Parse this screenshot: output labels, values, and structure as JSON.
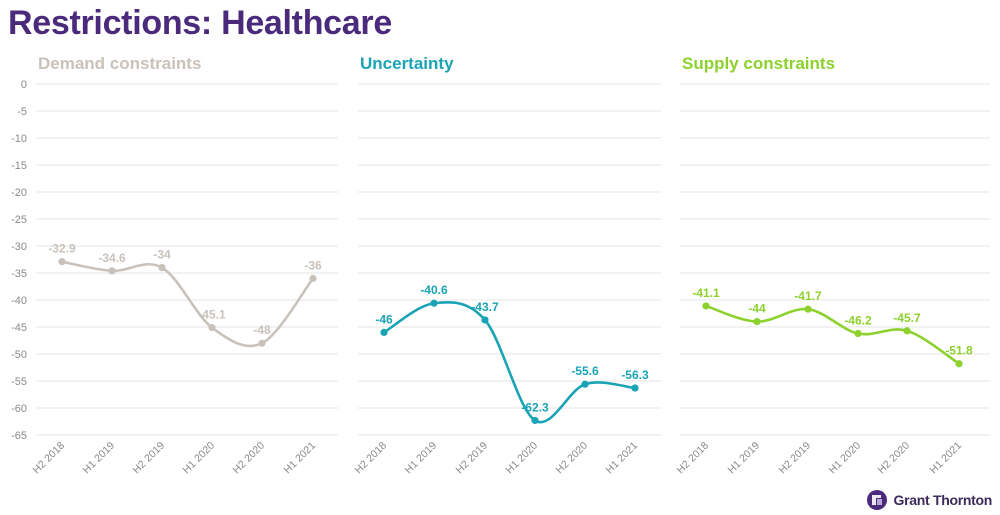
{
  "page": {
    "title": "Restrictions: Healthcare"
  },
  "brand": {
    "name": "Grant Thornton",
    "color": "#4b2a7b"
  },
  "chart_data": [
    {
      "type": "line",
      "title": "Demand constraints",
      "color": "#c9c2ba",
      "categories": [
        "H2 2018",
        "H1 2019",
        "H2 2019",
        "H1 2020",
        "H2 2020",
        "H1 2021"
      ],
      "values": [
        -32.9,
        -34.6,
        -34,
        -45.1,
        -48,
        -36
      ],
      "labels": [
        "-32.9",
        "-34.6",
        "-34",
        "-45.1",
        "-48",
        "-36"
      ],
      "ylim": [
        -65,
        0
      ],
      "yticks": [
        0,
        -5,
        -10,
        -15,
        -20,
        -25,
        -30,
        -35,
        -40,
        -45,
        -50,
        -55,
        -60,
        -65
      ],
      "ytick_labels": [
        "0",
        "-5",
        "-10",
        "-15",
        "-20",
        "-25",
        "-30",
        "-35",
        "-40",
        "-45",
        "-50",
        "-55",
        "-60",
        "-65"
      ],
      "grid": true,
      "smooth": true
    },
    {
      "type": "line",
      "title": "Uncertainty",
      "color": "#1aa3b5",
      "categories": [
        "H2 2018",
        "H1 2019",
        "H2 2019",
        "H1 2020",
        "H2 2020",
        "H1 2021"
      ],
      "values": [
        -46,
        -40.6,
        -43.7,
        -62.3,
        -55.6,
        -56.3
      ],
      "labels": [
        "-46",
        "-40.6",
        "-43.7",
        "-62.3",
        "-55.6",
        "-56.3"
      ],
      "ylim": [
        -65,
        0
      ],
      "grid": true,
      "smooth": true
    },
    {
      "type": "line",
      "title": "Supply constraints",
      "color": "#8cd12e",
      "categories": [
        "H2 2018",
        "H1 2019",
        "H2 2019",
        "H1 2020",
        "H2 2020",
        "H1 2021"
      ],
      "values": [
        -41.1,
        -44,
        -41.7,
        -46.2,
        -45.7,
        -51.8
      ],
      "labels": [
        "-41.1",
        "-44",
        "-41.7",
        "-46.2",
        "-45.7",
        "-51.8"
      ],
      "ylim": [
        -65,
        0
      ],
      "grid": true,
      "smooth": true
    }
  ]
}
